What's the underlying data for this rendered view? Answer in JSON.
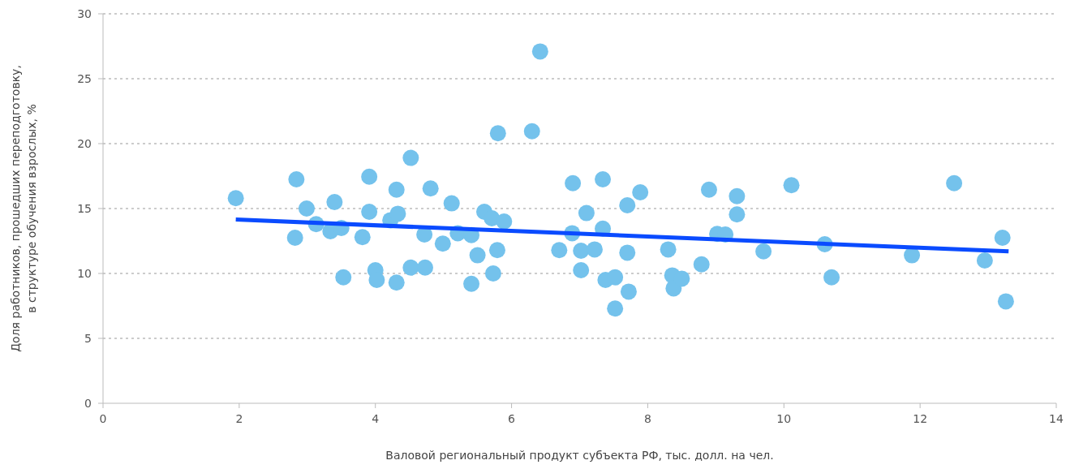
{
  "chart_data": {
    "type": "scatter",
    "xlabel": "Валовой региональный продукт субъекта РФ, тыс. долл. на чел.",
    "ylabel": "Доля работников, прошедших переподготовку,\nв структуре обучения взрослых, %",
    "xlim": [
      0,
      14
    ],
    "xticks": [
      0,
      2,
      4,
      6,
      8,
      10,
      12,
      14
    ],
    "ylim": [
      0,
      30
    ],
    "yticks": [
      0,
      5,
      10,
      15,
      20,
      25,
      30
    ],
    "grid": "y",
    "marker": "circle",
    "series": [
      {
        "color": "#74c2ec",
        "x": [
          1.95,
          2.84,
          2.82,
          2.99,
          3.13,
          3.34,
          3.4,
          3.5,
          3.53,
          3.81,
          3.91,
          3.91,
          4.0,
          4.02,
          4.22,
          4.31,
          4.33,
          4.31,
          4.52,
          4.52,
          4.72,
          4.73,
          4.81,
          4.99,
          5.12,
          5.21,
          5.41,
          5.41,
          5.5,
          5.6,
          5.71,
          5.73,
          5.8,
          5.79,
          5.89,
          6.3,
          6.42,
          6.7,
          6.9,
          6.89,
          7.02,
          7.02,
          7.1,
          7.22,
          7.34,
          7.34,
          7.38,
          7.52,
          7.52,
          7.7,
          7.7,
          7.72,
          7.89,
          8.3,
          8.36,
          8.38,
          8.5,
          8.79,
          8.9,
          9.02,
          9.14,
          9.31,
          9.31,
          9.7,
          10.11,
          10.6,
          10.7,
          11.88,
          12.5,
          12.95,
          13.21,
          13.26
        ],
        "values": [
          15.8,
          17.25,
          12.75,
          15.0,
          13.8,
          13.25,
          15.5,
          13.5,
          9.7,
          12.8,
          17.45,
          14.75,
          10.25,
          9.5,
          14.1,
          16.45,
          14.6,
          9.3,
          18.9,
          10.45,
          13.0,
          10.45,
          16.55,
          12.3,
          15.4,
          13.1,
          12.95,
          9.2,
          11.4,
          14.75,
          14.25,
          10.0,
          20.8,
          11.8,
          14.0,
          20.95,
          27.1,
          11.8,
          16.95,
          13.1,
          11.75,
          10.25,
          14.65,
          11.85,
          17.25,
          13.45,
          9.5,
          9.7,
          7.3,
          11.6,
          15.25,
          8.6,
          16.25,
          11.85,
          9.85,
          8.85,
          9.6,
          10.7,
          16.45,
          13.05,
          13.0,
          15.95,
          14.55,
          11.7,
          16.8,
          12.25,
          9.7,
          11.4,
          16.95,
          11.0,
          12.75,
          7.85
        ]
      },
      {
        "type": "line",
        "color": "#0a4bff",
        "marker": "none",
        "x": [
          1.95,
          13.3
        ],
        "values": [
          14.15,
          11.7
        ]
      }
    ]
  }
}
